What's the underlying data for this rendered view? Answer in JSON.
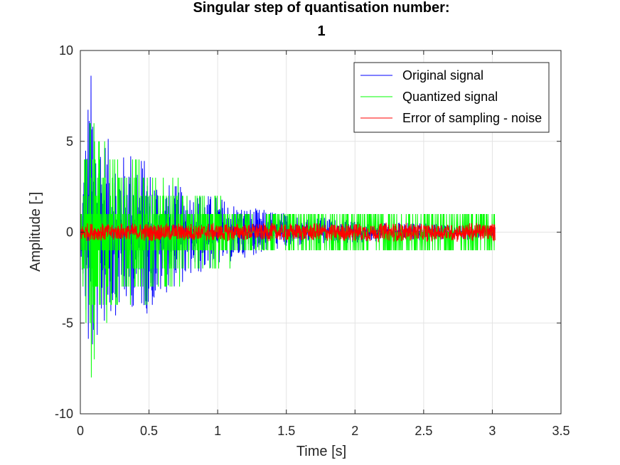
{
  "chart_data": {
    "type": "line",
    "title_lines": [
      "Singular step of quantisation number:",
      "1"
    ],
    "xlabel": "Time [s]",
    "ylabel": "Amplitude [-]",
    "xlim": [
      0,
      3.5
    ],
    "ylim": [
      -10,
      10
    ],
    "xticks": [
      0,
      0.5,
      1,
      1.5,
      2,
      2.5,
      3,
      3.5
    ],
    "xtick_labels": [
      "0",
      "0.5",
      "1",
      "1.5",
      "2",
      "2.5",
      "3",
      "3.5"
    ],
    "yticks": [
      -10,
      -5,
      0,
      5,
      10
    ],
    "ytick_labels": [
      "-10",
      "-5",
      "0",
      "5",
      "10"
    ],
    "grid": true,
    "legend_position": "top-right",
    "series": [
      {
        "name": "Original signal",
        "color": "#0000ff",
        "envelope": {
          "t": [
            0,
            0.03,
            0.06,
            0.08,
            0.1,
            0.15,
            0.2,
            0.3,
            0.4,
            0.5,
            0.6,
            0.7,
            0.8,
            1.0,
            1.2,
            1.4,
            1.6,
            1.8,
            2.0,
            2.3,
            2.6,
            3.0
          ],
          "max": [
            0.5,
            4.5,
            8.2,
            9.1,
            7.0,
            5.8,
            5.2,
            4.2,
            5.0,
            3.6,
            2.8,
            2.6,
            2.3,
            2.0,
            1.4,
            1.2,
            0.95,
            0.8,
            0.6,
            0.55,
            0.5,
            0.4
          ],
          "min": [
            -0.5,
            -4.5,
            -7.5,
            -8.3,
            -6.8,
            -5.5,
            -5.0,
            -4.3,
            -4.2,
            -4.6,
            -3.5,
            -3.0,
            -2.6,
            -1.9,
            -1.4,
            -1.0,
            -0.8,
            -0.7,
            -0.6,
            -0.5,
            -0.45,
            -0.4
          ]
        }
      },
      {
        "name": "Quantized signal",
        "color": "#00ff00",
        "envelope": {
          "t": [
            0,
            0.03,
            0.06,
            0.08,
            0.1,
            0.15,
            0.2,
            0.3,
            0.4,
            0.5,
            0.6,
            0.7,
            0.8,
            1.0,
            1.2,
            1.4,
            1.6,
            1.8,
            2.0,
            2.3,
            2.6,
            3.0
          ],
          "max": [
            1,
            5,
            8,
            9,
            7,
            6,
            6,
            4,
            4,
            3,
            3,
            3,
            2,
            2,
            1,
            1,
            1,
            1,
            1,
            1,
            1,
            1
          ],
          "min": [
            -1,
            -4,
            -7,
            -8,
            -7,
            -6,
            -5,
            -4,
            -4,
            -4,
            -3,
            -3,
            -2,
            -2,
            -1,
            -1,
            -1,
            -1,
            -1,
            -1,
            -1,
            -1
          ]
        }
      },
      {
        "name": "Error of sampling - noise",
        "color": "#ff0000",
        "envelope": {
          "t": [
            0,
            3.0
          ],
          "max": [
            0.5,
            0.5
          ],
          "min": [
            -0.5,
            -0.5
          ]
        }
      }
    ],
    "signal_end_time": 3.02
  }
}
